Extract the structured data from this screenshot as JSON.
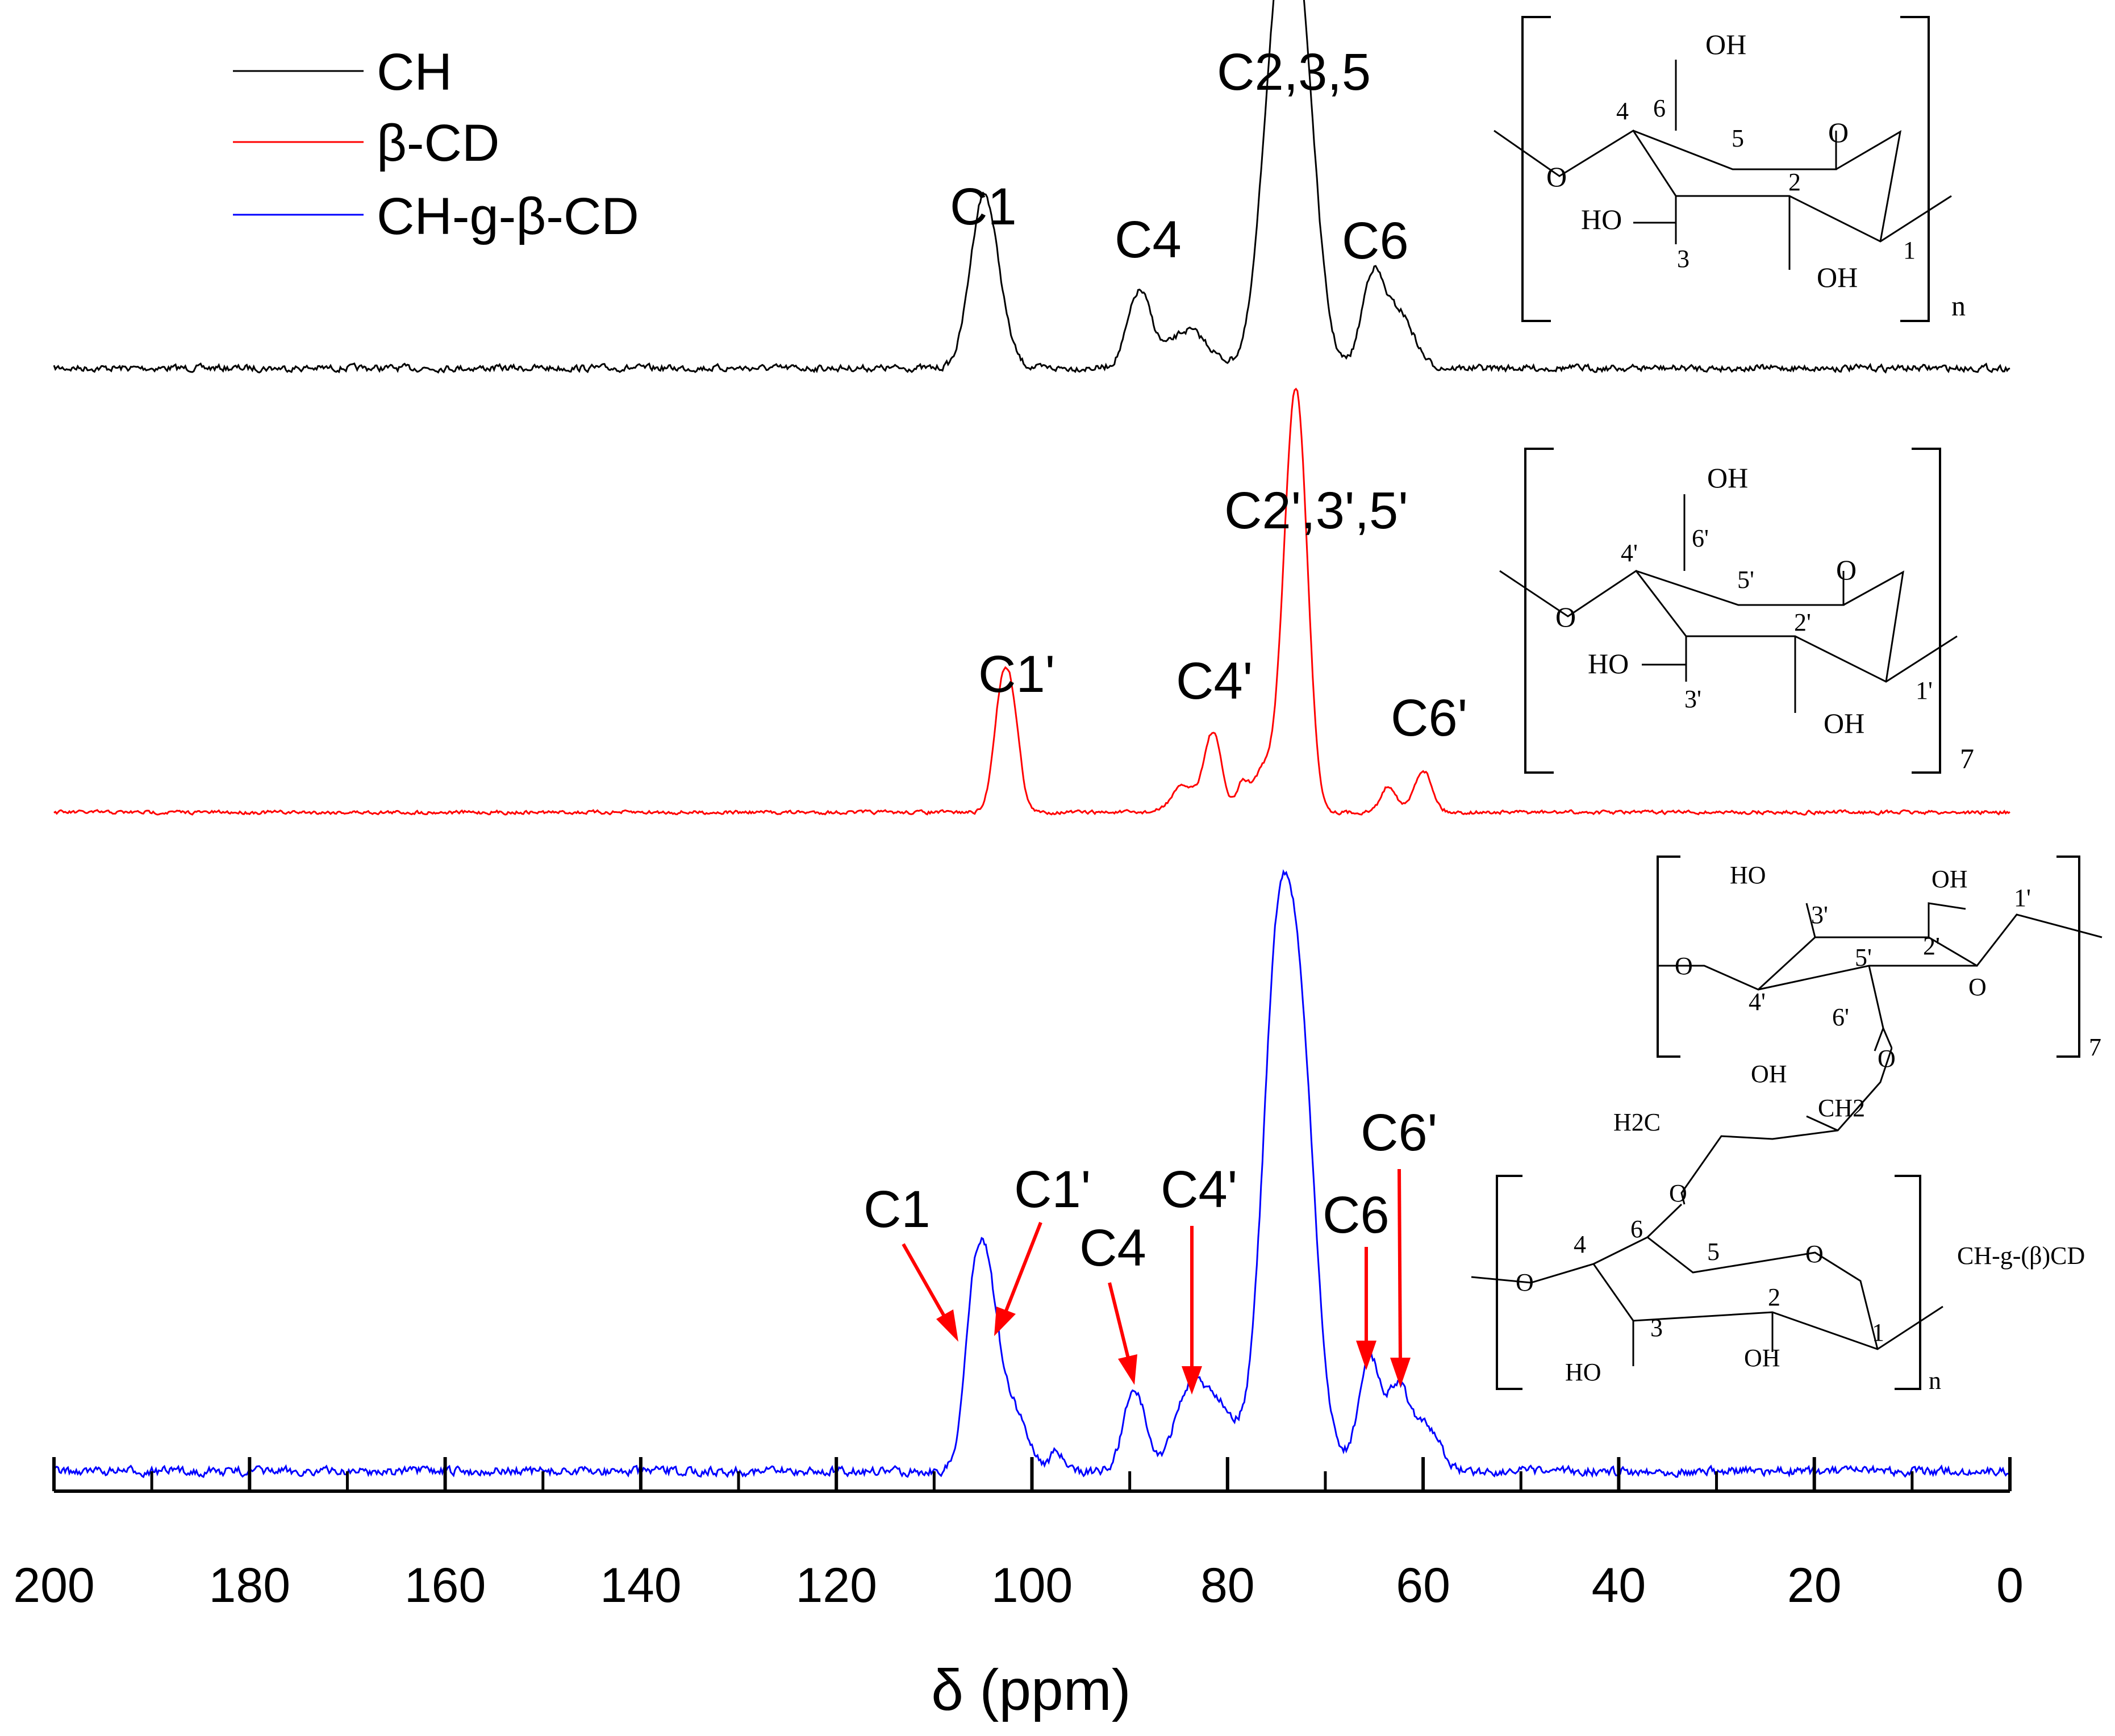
{
  "chart_data": {
    "type": "line",
    "title": "",
    "xlabel": "δ (ppm)",
    "ylabel": "",
    "xlim": [
      200,
      0
    ],
    "x_reversed": true,
    "x_ticks": [
      200,
      180,
      160,
      140,
      120,
      100,
      80,
      60,
      40,
      20,
      0
    ],
    "x_ticks_labels": [
      "200",
      "180",
      "160",
      "140",
      "120",
      "100",
      "80",
      "60",
      "40",
      "20",
      "0"
    ],
    "grid": false,
    "legend_position": "top-left",
    "series": [
      {
        "name": "CH",
        "color": "#000000",
        "peaks": [
          {
            "ppm": 105.2,
            "height": 0.5,
            "width": 1.3
          },
          {
            "ppm": 104.0,
            "height": 0.25,
            "width": 1.4
          },
          {
            "ppm": 89.0,
            "height": 0.3,
            "width": 1.2
          },
          {
            "ppm": 84.0,
            "height": 0.15,
            "width": 2.0
          },
          {
            "ppm": 75.0,
            "height": 0.95,
            "width": 1.5
          },
          {
            "ppm": 72.5,
            "height": 0.97,
            "width": 1.5
          },
          {
            "ppm": 73.8,
            "height": 0.45,
            "width": 2.2
          },
          {
            "ppm": 65.2,
            "height": 0.35,
            "width": 1.1
          },
          {
            "ppm": 62.5,
            "height": 0.22,
            "width": 1.5
          }
        ],
        "annotations": [
          {
            "label": "C1",
            "ppm": 105.2
          },
          {
            "label": "C4",
            "ppm": 89.0
          },
          {
            "label": "C2,3,5",
            "ppm": 74.0
          },
          {
            "label": "C6",
            "ppm": 64.0
          }
        ]
      },
      {
        "name": "β-CD",
        "color": "#ff0000",
        "peaks": [
          {
            "ppm": 103.2,
            "height": 0.38,
            "width": 0.8
          },
          {
            "ppm": 102.0,
            "height": 0.35,
            "width": 0.8
          },
          {
            "ppm": 84.5,
            "height": 0.1,
            "width": 1.2
          },
          {
            "ppm": 81.5,
            "height": 0.3,
            "width": 0.9
          },
          {
            "ppm": 78.5,
            "height": 0.1,
            "width": 0.6
          },
          {
            "ppm": 76.5,
            "height": 0.15,
            "width": 1.0
          },
          {
            "ppm": 73.5,
            "height": 1.0,
            "width": 1.1
          },
          {
            "ppm": 72.5,
            "height": 0.8,
            "width": 1.0
          },
          {
            "ppm": 63.5,
            "height": 0.1,
            "width": 0.8
          },
          {
            "ppm": 60.0,
            "height": 0.16,
            "width": 0.9
          }
        ],
        "annotations": [
          {
            "label": "C1'",
            "ppm": 103.0
          },
          {
            "label": "C4'",
            "ppm": 83.5
          },
          {
            "label": "C2',3',5'",
            "ppm": 73.5
          },
          {
            "label": "C6'",
            "ppm": 60.5
          }
        ]
      },
      {
        "name": "CH-g-β-CD",
        "color": "#0000ff",
        "peaks": [
          {
            "ppm": 106.0,
            "height": 0.4,
            "width": 1.0
          },
          {
            "ppm": 104.5,
            "height": 0.45,
            "width": 1.1
          },
          {
            "ppm": 102.0,
            "height": 0.18,
            "width": 1.5
          },
          {
            "ppm": 97.5,
            "height": 0.06,
            "width": 0.6
          },
          {
            "ppm": 89.5,
            "height": 0.24,
            "width": 1.1
          },
          {
            "ppm": 84.0,
            "height": 0.22,
            "width": 1.5
          },
          {
            "ppm": 81.0,
            "height": 0.18,
            "width": 1.6
          },
          {
            "ppm": 75.0,
            "height": 1.0,
            "width": 1.4
          },
          {
            "ppm": 72.5,
            "height": 0.8,
            "width": 1.4
          },
          {
            "ppm": 73.8,
            "height": 0.5,
            "width": 2.5
          },
          {
            "ppm": 65.5,
            "height": 0.32,
            "width": 1.1
          },
          {
            "ppm": 62.5,
            "height": 0.24,
            "width": 1.2
          },
          {
            "ppm": 59.5,
            "height": 0.12,
            "width": 1.3
          }
        ],
        "annotations": [
          {
            "label": "C1",
            "ppm": 106.0
          },
          {
            "label": "C1'",
            "ppm": 104.3
          },
          {
            "label": "C4",
            "ppm": 89.5
          },
          {
            "label": "C4'",
            "ppm": 84.0
          },
          {
            "label": "C6",
            "ppm": 65.5
          },
          {
            "label": "C6'",
            "ppm": 62.5
          }
        ]
      }
    ]
  },
  "structures": {
    "ch": {
      "atoms": [
        "OH",
        "4",
        "6",
        "5",
        "O",
        "O",
        "2",
        "HO",
        "3",
        "OH",
        "1"
      ],
      "subscript": "n"
    },
    "bcd": {
      "atoms": [
        "OH",
        "4'",
        "6'",
        "5'",
        "O",
        "O",
        "2'",
        "HO",
        "3'",
        "OH",
        "1'"
      ],
      "subscript": "7"
    },
    "graft": {
      "upper_atoms": [
        "HO",
        "3'",
        "OH",
        "2'",
        "1'",
        "O",
        "4'",
        "5'",
        "O",
        "6'"
      ],
      "upper_subscript": "7",
      "linker": [
        "O",
        "OH",
        "H2C",
        "CH2",
        "O"
      ],
      "lower_atoms": [
        "4",
        "6",
        "5",
        "O",
        "O",
        "2",
        "1",
        "HO",
        "3",
        "OH"
      ],
      "lower_subscript": "n",
      "caption": "CH-g-(β)CD"
    }
  }
}
